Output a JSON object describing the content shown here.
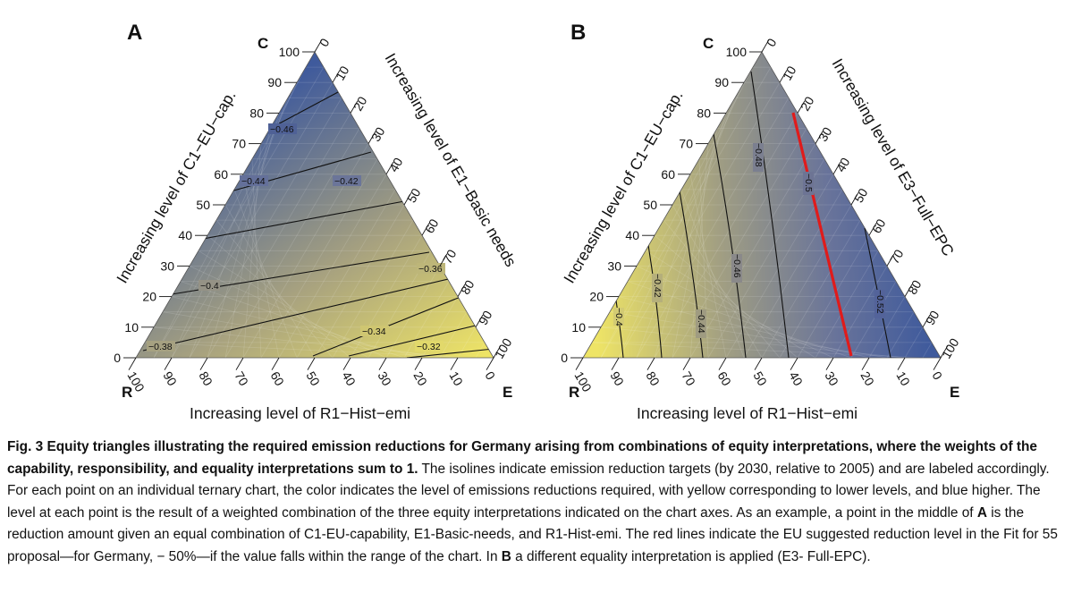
{
  "panels": [
    {
      "letter": "A",
      "corner_top": "C",
      "corner_left": "R",
      "corner_right": "E",
      "left_axis_title": "Increasing level of C1−EU−cap.",
      "right_axis_title": "Increasing level of E1−Basic needs",
      "bottom_axis_title": "Increasing level of R1−Hist−emi",
      "ticks_left": [
        "0",
        "10",
        "20",
        "30",
        "40",
        "50",
        "60",
        "70",
        "80",
        "90",
        "100"
      ],
      "ticks_right": [
        "0",
        "10",
        "20",
        "30",
        "40",
        "50",
        "60",
        "70",
        "80",
        "90",
        "100"
      ],
      "ticks_bottom": [
        "100",
        "90",
        "80",
        "70",
        "60",
        "50",
        "40",
        "30",
        "20",
        "10",
        "0"
      ],
      "color_low": "#eee466",
      "color_high": "#3f5a9c",
      "isolines": [
        {
          "label": "−0.46"
        },
        {
          "label": "−0.44"
        },
        {
          "label": "−0.42"
        },
        {
          "label": "−0.4"
        },
        {
          "label": "−0.38"
        },
        {
          "label": "−0.36"
        },
        {
          "label": "−0.34"
        },
        {
          "label": "−0.32"
        }
      ]
    },
    {
      "letter": "B",
      "corner_top": "C",
      "corner_left": "R",
      "corner_right": "E",
      "left_axis_title": "Increasing level of C1−EU−cap.",
      "right_axis_title": "Increasing level of E3−Full−EPC",
      "bottom_axis_title": "Increasing level of R1−Hist−emi",
      "ticks_left": [
        "0",
        "10",
        "20",
        "30",
        "40",
        "50",
        "60",
        "70",
        "80",
        "90",
        "100"
      ],
      "ticks_right": [
        "0",
        "10",
        "20",
        "30",
        "40",
        "50",
        "60",
        "70",
        "80",
        "90",
        "100"
      ],
      "ticks_bottom": [
        "100",
        "90",
        "80",
        "70",
        "60",
        "50",
        "40",
        "30",
        "20",
        "10",
        "0"
      ],
      "color_low": "#eee466",
      "color_high": "#3f5a9c",
      "red_line_color": "#e01b1b",
      "isolines": [
        {
          "label": "−0.4"
        },
        {
          "label": "−0.42"
        },
        {
          "label": "−0.44"
        },
        {
          "label": "−0.46"
        },
        {
          "label": "−0.48"
        },
        {
          "label": "−0.5"
        },
        {
          "label": "−0.52"
        }
      ]
    }
  ],
  "caption": {
    "fig_label": "Fig. 3",
    "bold_title": "Equity triangles illustrating the required emission reductions for Germany arising from combinations of equity interpretations, where the weights of the capability, responsibility, and equality interpretations sum to 1.",
    "body_1": " The isolines indicate emission reduction targets (by 2030, relative to 2005) and are labeled accordingly. For each point on an individual ternary chart, the color indicates the level of emissions reductions required, with yellow corresponding to lower levels, and blue higher. The level at each point is the result of a weighted combination of the three equity interpretations indicated on the chart axes. As an example, a point in the middle of ",
    "ref_a": "A",
    "body_2": " is the reduction amount given an equal combination of C1-EU-capability, E1-Basic-needs, and R1-Hist-emi. The red lines indicate the EU suggested reduction level in the Fit for 55 proposal—for Germany, − 50%—if the value falls within the range of the chart. In ",
    "ref_b": "B",
    "body_3": " a different equality interpretation is applied (E3- Full-EPC)."
  }
}
